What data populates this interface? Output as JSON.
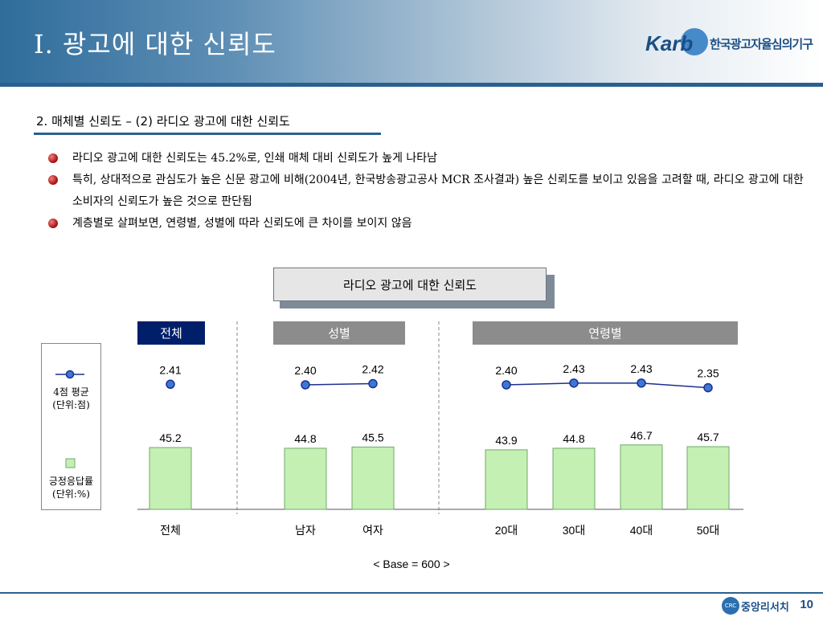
{
  "header": {
    "title": "Ⅰ. 광고에 대한 신뢰도",
    "logo_brand": "Karb",
    "logo_org": "한국광고자율심의기구"
  },
  "section": {
    "title": "2. 매체별 신뢰도 – (2) 라디오 광고에 대한 신뢰도"
  },
  "bullets": [
    "라디오 광고에 대한 신뢰도는 45.2%로, 인쇄 매체 대비 신뢰도가 높게 나타남",
    "특히, 상대적으로 관심도가 높은 신문 광고에 비해(2004년, 한국방송광고공사 MCR 조사결과) 높은 신뢰도를 보이고 있음을 고려할 때, 라디오 광고에 대한 소비자의 신뢰도가 높은 것으로 판단됨",
    "계층별로 살펴보면, 연령별, 성별에 따라 신뢰도에 큰 차이를 보이지 않음"
  ],
  "colors": {
    "header_blue": "#2a6090",
    "group_total": "#001f6b",
    "group_other": "#8c8c8c",
    "bar_fill": "#c4f0b4",
    "bar_stroke": "#6fa868",
    "point_fill": "#3a78d4",
    "line": "#1f2f8f"
  },
  "chart_data": {
    "type": "bar",
    "title": "라디오 광고에 대한 신뢰도",
    "groups": [
      {
        "name": "전체",
        "categories": [
          "전체"
        ]
      },
      {
        "name": "성별",
        "categories": [
          "남자",
          "여자"
        ]
      },
      {
        "name": "연령별",
        "categories": [
          "20대",
          "30대",
          "40대",
          "50대"
        ]
      }
    ],
    "categories": [
      "전체",
      "남자",
      "여자",
      "20대",
      "30대",
      "40대",
      "50대"
    ],
    "series": [
      {
        "name": "긍정응답률",
        "type": "bar",
        "unit": "(단위:%)",
        "values": [
          45.2,
          44.8,
          45.5,
          43.9,
          44.8,
          46.7,
          45.7
        ]
      },
      {
        "name": "4점 평균",
        "type": "line",
        "unit": "(단위:점)",
        "values": [
          2.41,
          2.4,
          2.42,
          2.4,
          2.43,
          2.43,
          2.35
        ]
      }
    ],
    "base_note": "< Base = 600 >"
  },
  "footer": {
    "logo_mark": "CRC",
    "company": "중앙리서치",
    "page_number": "10"
  }
}
